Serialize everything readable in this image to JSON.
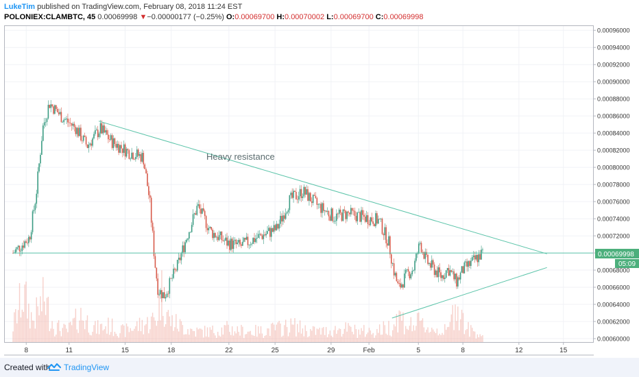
{
  "header": {
    "author": "LukeTim",
    "published": " published on TradingView.com, February 08, 2018 11:24 EST",
    "symbol": "POLONIEX:CLAMBTC, 45",
    "last": "0.00069998",
    "change_arrow": "▼",
    "change": "−0.00000177 (−0.25%)",
    "o_label": "O:",
    "o_value": "0.00069700",
    "h_label": "H:",
    "h_value": "0.00070002",
    "l_label": "L:",
    "l_value": "0.00069700",
    "c_label": "C:",
    "c_value": "0.00069998"
  },
  "footer": {
    "created_with": "Created with",
    "brand": "TradingView",
    "logo_icon": "tradingview-logo-icon"
  },
  "colors": {
    "up": "#3a9b82",
    "down": "#d75a4a",
    "trendline": "#59c3a8",
    "price_tag": "#4caf7c",
    "volume": "#f1a99f"
  },
  "chart_data": {
    "type": "candlestick",
    "symbol": "POLONIEX:CLAMBTC",
    "interval": "45",
    "y_axis_ticks": [
      "0.00060000",
      "0.00062000",
      "0.00064000",
      "0.00066000",
      "0.00068000",
      "0.00070000",
      "0.00072000",
      "0.00074000",
      "0.00076000",
      "0.00078000",
      "0.00080000",
      "0.00082000",
      "0.00084000",
      "0.00086000",
      "0.00088000",
      "0.00090000",
      "0.00092000",
      "0.00094000",
      "0.00096000"
    ],
    "ylim": [
      0.000596,
      0.000965
    ],
    "x_axis_ticks": [
      "8",
      "11",
      "15",
      "18",
      "22",
      "25",
      "29",
      "Feb",
      "5",
      "8",
      "12",
      "15"
    ],
    "last_price_label": "0.00069998",
    "countdown_label": "05:09",
    "annotation": "Heavy resistance",
    "price_path": [
      [
        0,
        0.0007
      ],
      [
        1,
        0.000718
      ],
      [
        1.4,
        0.000768
      ],
      [
        1.8,
        0.000846
      ],
      [
        2.2,
        0.000875
      ],
      [
        3,
        0.000858
      ],
      [
        3.8,
        0.000846
      ],
      [
        4.5,
        0.000825
      ],
      [
        5.3,
        0.000845
      ],
      [
        6,
        0.00083
      ],
      [
        7,
        0.000818
      ],
      [
        7.9,
        0.000812
      ],
      [
        8.3,
        0.00076
      ],
      [
        8.6,
        0.00069
      ],
      [
        8.8,
        0.000657
      ],
      [
        9.2,
        0.00065
      ],
      [
        9.6,
        0.000668
      ],
      [
        10,
        0.000686
      ],
      [
        10.6,
        0.000722
      ],
      [
        11.2,
        0.000755
      ],
      [
        12,
        0.000725
      ],
      [
        13,
        0.000712
      ],
      [
        13.8,
        0.000708
      ],
      [
        14.8,
        0.000718
      ],
      [
        16,
        0.000728
      ],
      [
        16.8,
        0.000762
      ],
      [
        17.6,
        0.000772
      ],
      [
        18.5,
        0.000755
      ],
      [
        19.5,
        0.000742
      ],
      [
        20.3,
        0.000746
      ],
      [
        21.2,
        0.000742
      ],
      [
        22.2,
        0.000738
      ],
      [
        22.8,
        0.000712
      ],
      [
        23.1,
        0.00068
      ],
      [
        23.4,
        0.000658
      ],
      [
        23.8,
        0.000672
      ],
      [
        24.3,
        0.000682
      ],
      [
        24.7,
        0.000712
      ],
      [
        25.1,
        0.00069
      ],
      [
        25.6,
        0.00068
      ],
      [
        26,
        0.000672
      ],
      [
        26.4,
        0.000682
      ],
      [
        26.9,
        0.000666
      ],
      [
        27.3,
        0.00068
      ],
      [
        27.8,
        0.000688
      ],
      [
        28.2,
        0.000695
      ],
      [
        28.5,
        0.0007
      ]
    ],
    "volume": [
      [
        0,
        0.3
      ],
      [
        0.6,
        0.9
      ],
      [
        1.2,
        0.4
      ],
      [
        1.9,
        0.8
      ],
      [
        2.5,
        0.3
      ],
      [
        3.3,
        0.2
      ],
      [
        4.1,
        0.5
      ],
      [
        5,
        0.25
      ],
      [
        5.8,
        0.3
      ],
      [
        6.7,
        0.2
      ],
      [
        7.5,
        0.3
      ],
      [
        8.2,
        0.35
      ],
      [
        8.7,
        0.45
      ],
      [
        9,
        0.95
      ],
      [
        9.5,
        0.4
      ],
      [
        10.2,
        0.3
      ],
      [
        11,
        0.2
      ],
      [
        12,
        0.2
      ],
      [
        13,
        0.25
      ],
      [
        14,
        0.2
      ],
      [
        15,
        0.2
      ],
      [
        16,
        0.25
      ],
      [
        17,
        0.3
      ],
      [
        18,
        0.2
      ],
      [
        19,
        0.2
      ],
      [
        20,
        0.25
      ],
      [
        21,
        0.2
      ],
      [
        22,
        0.2
      ],
      [
        23,
        0.3
      ],
      [
        23.4,
        0.5
      ],
      [
        24,
        0.3
      ],
      [
        24.7,
        0.35
      ],
      [
        25.3,
        0.25
      ],
      [
        26.4,
        0.2
      ],
      [
        26.9,
        0.75
      ],
      [
        27.5,
        0.25
      ],
      [
        28.4,
        0.15
      ]
    ],
    "trendlines": [
      {
        "name": "upper-resistance",
        "x": [
          5.2,
          32.4
        ],
        "y": [
          0.000854,
          0.000699
        ]
      },
      {
        "name": "lower-support",
        "x": [
          23.0,
          32.4
        ],
        "y": [
          0.000624,
          0.000683
        ]
      },
      {
        "name": "horizontal-last-price",
        "x": [
          0,
          35.2
        ],
        "y": [
          0.00069998,
          0.00069998
        ]
      }
    ],
    "x_tick_positions": [
      0.8,
      3.4,
      6.8,
      9.6,
      13.1,
      15.9,
      19.3,
      21.6,
      24.6,
      27.3,
      30.7,
      33.4
    ],
    "x_range": [
      -0.5,
      35.2
    ]
  }
}
